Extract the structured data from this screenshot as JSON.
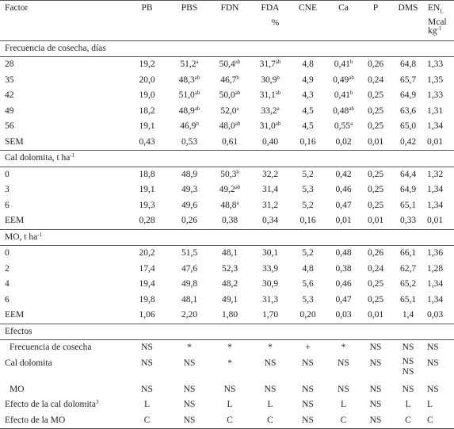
{
  "header": {
    "factor_label": "Factor",
    "columns": [
      "PB",
      "PBS",
      "FDN",
      "FDA",
      "CNE",
      "Ca",
      "P",
      "DMS",
      "EN"
    ],
    "en_subscript": "L",
    "unit_percent": "%",
    "unit_mcal_line1": "Mcal",
    "unit_mcal_line2": "kg",
    "unit_mcal_sup": "-1"
  },
  "sections": [
    {
      "title": "Frecuencia de cosecha, días",
      "title_sup": "",
      "rows": [
        {
          "label": "28",
          "cells": [
            [
              "19,2",
              ""
            ],
            [
              "51,2",
              "a"
            ],
            [
              "50,4",
              "ab"
            ],
            [
              "31,7",
              "ab"
            ],
            [
              "4,8",
              ""
            ],
            [
              "0,41",
              "b"
            ],
            [
              "0,26",
              ""
            ],
            [
              "64,8",
              ""
            ],
            [
              "1,33",
              ""
            ]
          ]
        },
        {
          "label": "35",
          "cells": [
            [
              "20,0",
              ""
            ],
            [
              "48,3",
              "ab"
            ],
            [
              "46,7",
              "b"
            ],
            [
              "30,9",
              "b"
            ],
            [
              "4,9",
              ""
            ],
            [
              "0,49",
              "ab"
            ],
            [
              "0,24",
              ""
            ],
            [
              "65,7",
              ""
            ],
            [
              "1,35",
              ""
            ]
          ]
        },
        {
          "label": "42",
          "cells": [
            [
              "19,0",
              ""
            ],
            [
              "51,0",
              "ab"
            ],
            [
              "50,0",
              "ab"
            ],
            [
              "31,1",
              "ab"
            ],
            [
              "4,3",
              ""
            ],
            [
              "0,41",
              "b"
            ],
            [
              "0,25",
              ""
            ],
            [
              "64,9",
              ""
            ],
            [
              "1,33",
              ""
            ]
          ]
        },
        {
          "label": "49",
          "cells": [
            [
              "18,2",
              ""
            ],
            [
              "48,9",
              "ab"
            ],
            [
              "52,0",
              "a"
            ],
            [
              "33,2",
              "a"
            ],
            [
              "4,5",
              ""
            ],
            [
              "0,48",
              "ab"
            ],
            [
              "0,25",
              ""
            ],
            [
              "63,6",
              ""
            ],
            [
              "1,31",
              ""
            ]
          ]
        },
        {
          "label": "56",
          "cells": [
            [
              "19,1",
              ""
            ],
            [
              "46,9",
              "b"
            ],
            [
              "48,0",
              "ab"
            ],
            [
              "31,0",
              "ab"
            ],
            [
              "4,5",
              ""
            ],
            [
              "0,55",
              "a"
            ],
            [
              "0,25",
              ""
            ],
            [
              "65,0",
              ""
            ],
            [
              "1,34",
              ""
            ]
          ]
        },
        {
          "label": "SEM",
          "cells": [
            [
              "0,43",
              ""
            ],
            [
              "0,53",
              ""
            ],
            [
              "0,61",
              ""
            ],
            [
              "0,40",
              ""
            ],
            [
              "0,16",
              ""
            ],
            [
              "0,02",
              ""
            ],
            [
              "0,01",
              ""
            ],
            [
              "0,42",
              ""
            ],
            [
              "0,01",
              ""
            ]
          ]
        }
      ]
    },
    {
      "title": "Cal dolomita, t ha",
      "title_sup": "-1",
      "rows": [
        {
          "label": "0",
          "cells": [
            [
              "18,8",
              ""
            ],
            [
              "48,9",
              ""
            ],
            [
              "50,3",
              "b"
            ],
            [
              "32,2",
              ""
            ],
            [
              "5,2",
              ""
            ],
            [
              "0,42",
              ""
            ],
            [
              "0,25",
              ""
            ],
            [
              "64,4",
              ""
            ],
            [
              "1,32",
              ""
            ]
          ]
        },
        {
          "label": "3",
          "cells": [
            [
              "19,1",
              ""
            ],
            [
              "49,3",
              ""
            ],
            [
              "49,2",
              "ab"
            ],
            [
              "31,4",
              ""
            ],
            [
              "5,3",
              ""
            ],
            [
              "0,46",
              ""
            ],
            [
              "0,25",
              ""
            ],
            [
              "64,9",
              ""
            ],
            [
              "1,34",
              ""
            ]
          ]
        },
        {
          "label": "6",
          "cells": [
            [
              "19,3",
              ""
            ],
            [
              "49,6",
              ""
            ],
            [
              "48,8",
              "a"
            ],
            [
              "31,2",
              ""
            ],
            [
              "5,2",
              ""
            ],
            [
              "0,47",
              ""
            ],
            [
              "0,25",
              ""
            ],
            [
              "65,1",
              ""
            ],
            [
              "1,34",
              ""
            ]
          ]
        },
        {
          "label": "EEM",
          "cells": [
            [
              "0,28",
              ""
            ],
            [
              "0,26",
              ""
            ],
            [
              "0,38",
              ""
            ],
            [
              "0,34",
              ""
            ],
            [
              "0,16",
              ""
            ],
            [
              "0,01",
              ""
            ],
            [
              "0,01",
              ""
            ],
            [
              "0,33",
              ""
            ],
            [
              "0,01",
              ""
            ]
          ]
        }
      ]
    },
    {
      "title": "MO, t ha",
      "title_sup": "-1",
      "rows": [
        {
          "label": "0",
          "cells": [
            [
              "20,2",
              ""
            ],
            [
              "51,5",
              ""
            ],
            [
              "48,1",
              ""
            ],
            [
              "30,1",
              ""
            ],
            [
              "5,2",
              ""
            ],
            [
              "0,48",
              ""
            ],
            [
              "0,26",
              ""
            ],
            [
              "66,1",
              ""
            ],
            [
              "1,36",
              ""
            ]
          ]
        },
        {
          "label": "2",
          "cells": [
            [
              "17,4",
              ""
            ],
            [
              "47,6",
              ""
            ],
            [
              "52,3",
              ""
            ],
            [
              "33,9",
              ""
            ],
            [
              "4,8",
              ""
            ],
            [
              "0,38",
              ""
            ],
            [
              "0,24",
              ""
            ],
            [
              "62,7",
              ""
            ],
            [
              "1,28",
              ""
            ]
          ]
        },
        {
          "label": "4",
          "cells": [
            [
              "19,4",
              ""
            ],
            [
              "49,8",
              ""
            ],
            [
              "48,2",
              ""
            ],
            [
              "30,9",
              ""
            ],
            [
              "5,6",
              ""
            ],
            [
              "0,46",
              ""
            ],
            [
              "0,25",
              ""
            ],
            [
              "65,2",
              ""
            ],
            [
              "1,34",
              ""
            ]
          ]
        },
        {
          "label": "6",
          "cells": [
            [
              "19,8",
              ""
            ],
            [
              "48,1",
              ""
            ],
            [
              "49,1",
              ""
            ],
            [
              "31,3",
              ""
            ],
            [
              "5,3",
              ""
            ],
            [
              "0,47",
              ""
            ],
            [
              "0,25",
              ""
            ],
            [
              "65,1",
              ""
            ],
            [
              "1,34",
              ""
            ]
          ]
        },
        {
          "label": "EEM",
          "cells": [
            [
              "1,06",
              ""
            ],
            [
              "2,20",
              ""
            ],
            [
              "1,80",
              ""
            ],
            [
              "1,70",
              ""
            ],
            [
              "0,20",
              ""
            ],
            [
              "0,03",
              ""
            ],
            [
              "0,01",
              ""
            ],
            [
              "1,4",
              ""
            ],
            [
              "0,03",
              ""
            ]
          ]
        }
      ]
    }
  ],
  "effects": {
    "title": "Efectos",
    "rows": [
      {
        "label": "Frecuencia de cosecha",
        "label_sup": "",
        "cells": [
          "NS",
          "*",
          "*",
          "*",
          "+",
          "*",
          "NS",
          "NS",
          "NS"
        ]
      },
      {
        "label": "Cal dolomita",
        "label_sup": "",
        "cells": [
          "NS",
          "NS",
          "*",
          "NS",
          "NS",
          "NS",
          "NS",
          "NS",
          "NS"
        ],
        "dms_extra": "NS"
      },
      {
        "label": "MO",
        "label_sup": "",
        "cells": [
          "NS",
          "NS",
          "NS",
          "NS",
          "NS",
          "NS",
          "NS",
          "NS",
          "NS"
        ]
      },
      {
        "label": "Efecto de la cal dolomita",
        "label_sup": "3",
        "cells": [
          "L",
          "NS",
          "L",
          "L",
          "NS",
          "L",
          "NS",
          "L",
          "L"
        ]
      },
      {
        "label": "Efecto de la MO",
        "label_sup": "",
        "cells": [
          "C",
          "NS",
          "C",
          "C",
          "NS",
          "C",
          "NS",
          "C",
          "C"
        ]
      }
    ]
  }
}
